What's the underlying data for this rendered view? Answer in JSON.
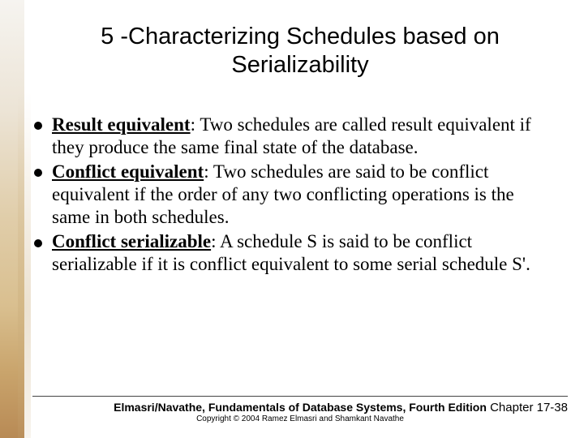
{
  "title": "5 -Characterizing Schedules based on Serializability",
  "bullets": [
    {
      "term": "Result equivalent",
      "text": ": Two schedules are called result equivalent if they produce the same final state of the database."
    },
    {
      "term": "Conflict equivalent",
      "text": ": Two schedules are said to be conflict equivalent if the order of any two conflicting operations is the same in both schedules."
    },
    {
      "term": "Conflict serializable",
      "text": ": A schedule S is said to be conflict serializable if it is conflict equivalent to some serial schedule S'."
    }
  ],
  "footer": {
    "book": "Elmasri/Navathe, Fundamentals of Database Systems, Fourth Edition",
    "copyright": "Copyright © 2004 Ramez Elmasri and Shamkant Navathe",
    "chapter": "Chapter 17-38"
  },
  "colors": {
    "text": "#000000",
    "background": "#ffffff"
  }
}
